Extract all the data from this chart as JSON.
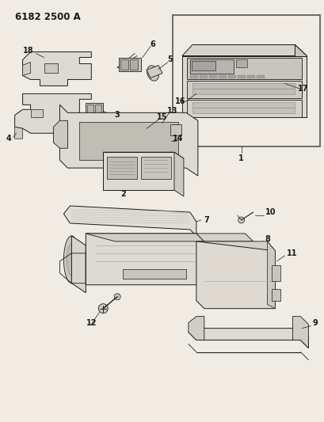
{
  "title": "6182 2500 A",
  "bg_color": "#f0ece4",
  "line_color": "#1a1a1a",
  "fig_width": 4.1,
  "fig_height": 5.33,
  "dpi": 100
}
